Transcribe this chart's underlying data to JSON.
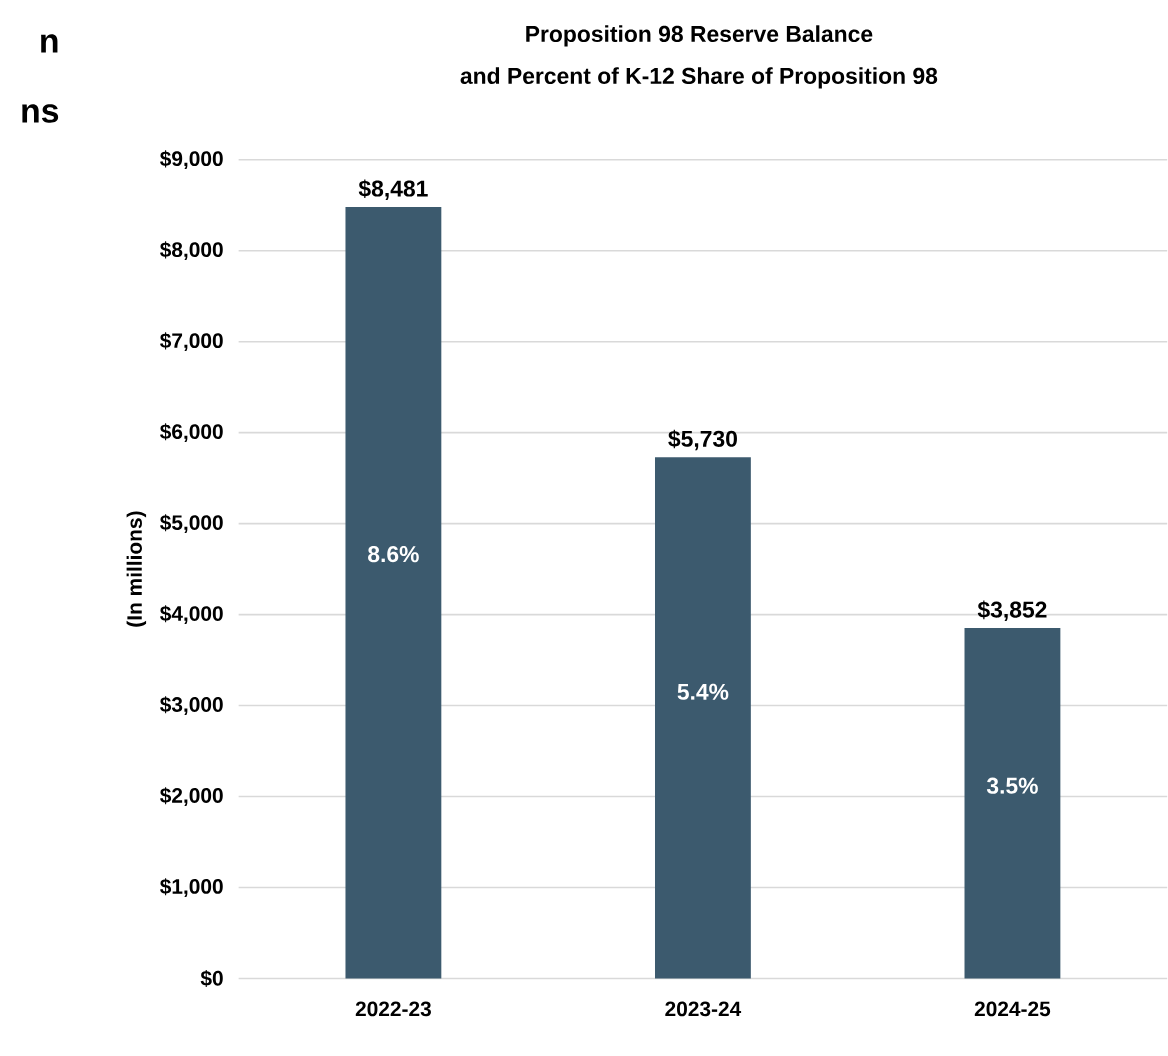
{
  "chart_data": {
    "type": "bar",
    "title": "Proposition 98 Reserve Balance",
    "subtitle": "and Percent of K-12 Share of Proposition 98",
    "ylabel": "(In millions)",
    "categories": [
      "2022-23",
      "2023-24",
      "2024-25"
    ],
    "values": [
      8481,
      5730,
      3852
    ],
    "value_labels": [
      "$8,481",
      "$5,730",
      "$3,852"
    ],
    "color": "#3c5a6e",
    "ylim": [
      0,
      9000
    ],
    "yticks": [
      {
        "value": 0,
        "label": "$0"
      },
      {
        "value": 1000,
        "label": "$1,000"
      },
      {
        "value": 2000,
        "label": "$2,000"
      },
      {
        "value": 3000,
        "label": "$3,000"
      },
      {
        "value": 4000,
        "label": "$4,000"
      },
      {
        "value": 5000,
        "label": "$5,000"
      },
      {
        "value": 6000,
        "label": "$6,000"
      },
      {
        "value": 7000,
        "label": "$7,000"
      },
      {
        "value": 8000,
        "label": "$8,000"
      },
      {
        "value": 9000,
        "label": "$9,000"
      }
    ],
    "grid": "y",
    "annotations": [
      "n",
      "ns",
      "8.6%",
      "5.4%",
      "3.5%"
    ]
  }
}
